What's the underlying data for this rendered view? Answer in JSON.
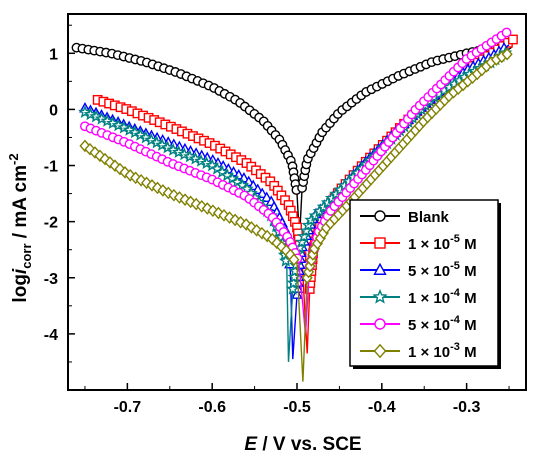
{
  "chart_data": {
    "type": "scatter",
    "xlabel": {
      "italic": "E",
      "rest": " / V vs. SCE"
    },
    "ylabel": {
      "prefix": "log",
      "italic": "i",
      "sub": "corr",
      "rest": " / mA cm",
      "sup": "-2"
    },
    "xlim": [
      -0.77,
      -0.23
    ],
    "ylim": [
      -5.0,
      1.7
    ],
    "xticks": [
      -0.7,
      -0.6,
      -0.5,
      -0.4,
      -0.3
    ],
    "xtick_labels": [
      "-0.7",
      "-0.6",
      "-0.5",
      "-0.4",
      "-0.3"
    ],
    "yticks": [
      1,
      0,
      -1,
      -2,
      -3,
      -4
    ],
    "ytick_labels": [
      "1",
      "0",
      "-1",
      "-2",
      "-3",
      "-4"
    ],
    "legend_position": "lower-right",
    "series": [
      {
        "name": "Blank",
        "label_parts": [
          "Blank"
        ],
        "color": "#000000",
        "marker": "circle",
        "ecorr": -0.497,
        "min_logi": -2.3,
        "cathodic": [
          [
            -0.76,
            1.1
          ],
          [
            -0.72,
            1.0
          ],
          [
            -0.68,
            0.85
          ],
          [
            -0.64,
            0.65
          ],
          [
            -0.6,
            0.4
          ],
          [
            -0.57,
            0.15
          ],
          [
            -0.54,
            -0.2
          ],
          [
            -0.52,
            -0.55
          ],
          [
            -0.506,
            -0.95
          ],
          [
            -0.5,
            -1.5
          ]
        ],
        "anodic": [
          [
            -0.494,
            -1.4
          ],
          [
            -0.488,
            -0.9
          ],
          [
            -0.47,
            -0.4
          ],
          [
            -0.45,
            -0.05
          ],
          [
            -0.42,
            0.3
          ],
          [
            -0.38,
            0.6
          ],
          [
            -0.34,
            0.85
          ],
          [
            -0.3,
            1.0
          ],
          [
            -0.27,
            1.1
          ],
          [
            -0.25,
            1.15
          ]
        ]
      },
      {
        "name": "1 × 10^-5 M",
        "label_parts": [
          "1 × 10",
          "-5",
          " M"
        ],
        "color": "#ff0000",
        "marker": "square",
        "ecorr": -0.488,
        "min_logi": -4.35,
        "cathodic": [
          [
            -0.735,
            0.17
          ],
          [
            -0.7,
            0.0
          ],
          [
            -0.65,
            -0.3
          ],
          [
            -0.6,
            -0.62
          ],
          [
            -0.56,
            -0.95
          ],
          [
            -0.53,
            -1.3
          ],
          [
            -0.51,
            -1.7
          ],
          [
            -0.5,
            -2.1
          ],
          [
            -0.494,
            -2.7
          ]
        ],
        "anodic": [
          [
            -0.485,
            -3.2
          ],
          [
            -0.48,
            -2.4
          ],
          [
            -0.47,
            -1.9
          ],
          [
            -0.45,
            -1.45
          ],
          [
            -0.42,
            -0.95
          ],
          [
            -0.39,
            -0.5
          ],
          [
            -0.36,
            -0.05
          ],
          [
            -0.33,
            0.35
          ],
          [
            -0.3,
            0.7
          ],
          [
            -0.27,
            1.0
          ],
          [
            -0.245,
            1.25
          ]
        ]
      },
      {
        "name": "5 × 10^-5 M",
        "label_parts": [
          "5 × 10",
          "-5",
          " M"
        ],
        "color": "#0000ff",
        "marker": "triangle",
        "ecorr": -0.505,
        "min_logi": -4.45,
        "cathodic": [
          [
            -0.75,
            0.02
          ],
          [
            -0.7,
            -0.3
          ],
          [
            -0.65,
            -0.6
          ],
          [
            -0.6,
            -0.9
          ],
          [
            -0.56,
            -1.25
          ],
          [
            -0.53,
            -1.65
          ],
          [
            -0.515,
            -2.1
          ],
          [
            -0.508,
            -2.8
          ]
        ],
        "anodic": [
          [
            -0.5,
            -3.3
          ],
          [
            -0.495,
            -2.5
          ],
          [
            -0.48,
            -1.9
          ],
          [
            -0.45,
            -1.45
          ],
          [
            -0.42,
            -0.95
          ],
          [
            -0.39,
            -0.5
          ],
          [
            -0.36,
            -0.05
          ],
          [
            -0.33,
            0.35
          ],
          [
            -0.3,
            0.7
          ],
          [
            -0.27,
            0.95
          ],
          [
            -0.25,
            1.15
          ]
        ]
      },
      {
        "name": "1 × 10^-4 M",
        "label_parts": [
          "1 × 10",
          "-4",
          " M"
        ],
        "color": "#008080",
        "marker": "star",
        "ecorr": -0.51,
        "min_logi": -4.5,
        "cathodic": [
          [
            -0.75,
            -0.05
          ],
          [
            -0.7,
            -0.35
          ],
          [
            -0.65,
            -0.7
          ],
          [
            -0.6,
            -1.0
          ],
          [
            -0.56,
            -1.4
          ],
          [
            -0.53,
            -1.9
          ],
          [
            -0.518,
            -2.3
          ],
          [
            -0.512,
            -2.8
          ]
        ],
        "anodic": [
          [
            -0.505,
            -3.2
          ],
          [
            -0.5,
            -2.6
          ],
          [
            -0.485,
            -2.0
          ],
          [
            -0.46,
            -1.6
          ],
          [
            -0.43,
            -1.15
          ],
          [
            -0.4,
            -0.7
          ],
          [
            -0.37,
            -0.25
          ],
          [
            -0.34,
            0.2
          ],
          [
            -0.3,
            0.6
          ],
          [
            -0.27,
            0.85
          ],
          [
            -0.25,
            1.05
          ]
        ]
      },
      {
        "name": "5 × 10^-4 M",
        "label_parts": [
          "5 × 10",
          "-4",
          " M"
        ],
        "color": "#ff00ff",
        "marker": "circle",
        "ecorr": -0.49,
        "min_logi": -4.0,
        "cathodic": [
          [
            -0.75,
            -0.3
          ],
          [
            -0.7,
            -0.6
          ],
          [
            -0.65,
            -0.95
          ],
          [
            -0.6,
            -1.25
          ],
          [
            -0.56,
            -1.55
          ],
          [
            -0.53,
            -1.9
          ],
          [
            -0.51,
            -2.3
          ],
          [
            -0.498,
            -2.7
          ]
        ],
        "anodic": [
          [
            -0.485,
            -2.8
          ],
          [
            -0.475,
            -2.2
          ],
          [
            -0.46,
            -1.8
          ],
          [
            -0.44,
            -1.45
          ],
          [
            -0.42,
            -1.1
          ],
          [
            -0.39,
            -0.55
          ],
          [
            -0.36,
            0.0
          ],
          [
            -0.33,
            0.45
          ],
          [
            -0.3,
            0.9
          ],
          [
            -0.27,
            1.2
          ],
          [
            -0.25,
            1.4
          ]
        ]
      },
      {
        "name": "1 × 10^-3 M",
        "label_parts": [
          "1 × 10",
          "-3",
          " M"
        ],
        "color": "#808000",
        "marker": "diamond",
        "ecorr": -0.493,
        "min_logi": -4.85,
        "cathodic": [
          [
            -0.75,
            -0.65
          ],
          [
            -0.7,
            -1.15
          ],
          [
            -0.65,
            -1.5
          ],
          [
            -0.6,
            -1.8
          ],
          [
            -0.56,
            -2.05
          ],
          [
            -0.53,
            -2.3
          ],
          [
            -0.51,
            -2.55
          ],
          [
            -0.5,
            -2.75
          ]
        ],
        "anodic": [
          [
            -0.488,
            -3.0
          ],
          [
            -0.48,
            -2.5
          ],
          [
            -0.465,
            -2.1
          ],
          [
            -0.44,
            -1.7
          ],
          [
            -0.41,
            -1.2
          ],
          [
            -0.38,
            -0.7
          ],
          [
            -0.35,
            -0.2
          ],
          [
            -0.32,
            0.25
          ],
          [
            -0.29,
            0.6
          ],
          [
            -0.27,
            0.85
          ],
          [
            -0.25,
            1.0
          ]
        ]
      }
    ]
  }
}
